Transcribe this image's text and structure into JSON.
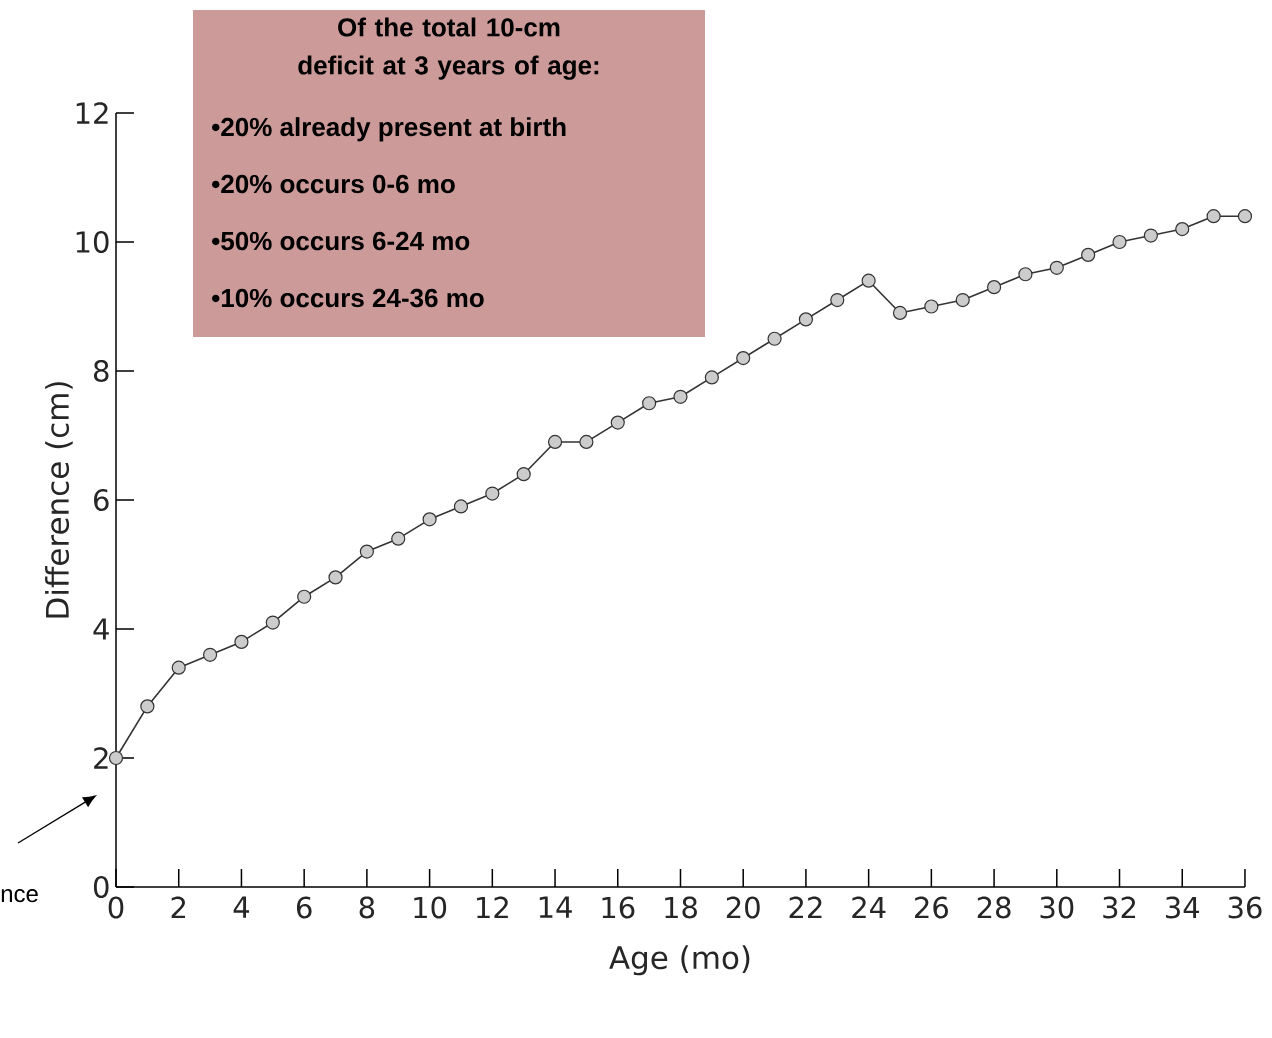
{
  "chart_data": {
    "type": "line",
    "xlabel": "Age (mo)",
    "ylabel": "Difference (cm)",
    "x": [
      0,
      1,
      2,
      3,
      4,
      5,
      6,
      7,
      8,
      9,
      10,
      11,
      12,
      13,
      14,
      15,
      16,
      17,
      18,
      19,
      20,
      21,
      22,
      23,
      24,
      25,
      26,
      27,
      28,
      29,
      30,
      31,
      32,
      33,
      34,
      35,
      36
    ],
    "series": [
      {
        "color": "#cccccc",
        "values": [
          2.0,
          2.8,
          3.4,
          3.6,
          3.8,
          4.1,
          4.5,
          4.8,
          5.2,
          5.4,
          5.7,
          5.9,
          6.1,
          6.4,
          6.9,
          6.9,
          7.2,
          7.5,
          7.6,
          7.9,
          8.2,
          8.5,
          8.8,
          9.1,
          9.4,
          8.9,
          9.0,
          9.1,
          9.3,
          9.5,
          9.6,
          9.8,
          10.0,
          10.1,
          10.2,
          10.4,
          10.4
        ]
      }
    ],
    "xlim": [
      0,
      36
    ],
    "ylim": [
      0,
      12
    ],
    "xticks": [
      0,
      2,
      4,
      6,
      8,
      10,
      12,
      14,
      16,
      18,
      20,
      22,
      24,
      26,
      28,
      30,
      32,
      34,
      36
    ],
    "yticks": [
      0,
      2,
      4,
      6,
      8,
      10,
      12
    ],
    "marker": "circle",
    "line_style": "solid",
    "annotations": [
      "Of the total 10-cm deficit at 3 years of age:",
      "•20% already present at birth",
      "•20% occurs 0-6 mo",
      "•50% occurs 6-24 mo",
      "•10% occurs 24-36 mo",
      "nce"
    ]
  }
}
